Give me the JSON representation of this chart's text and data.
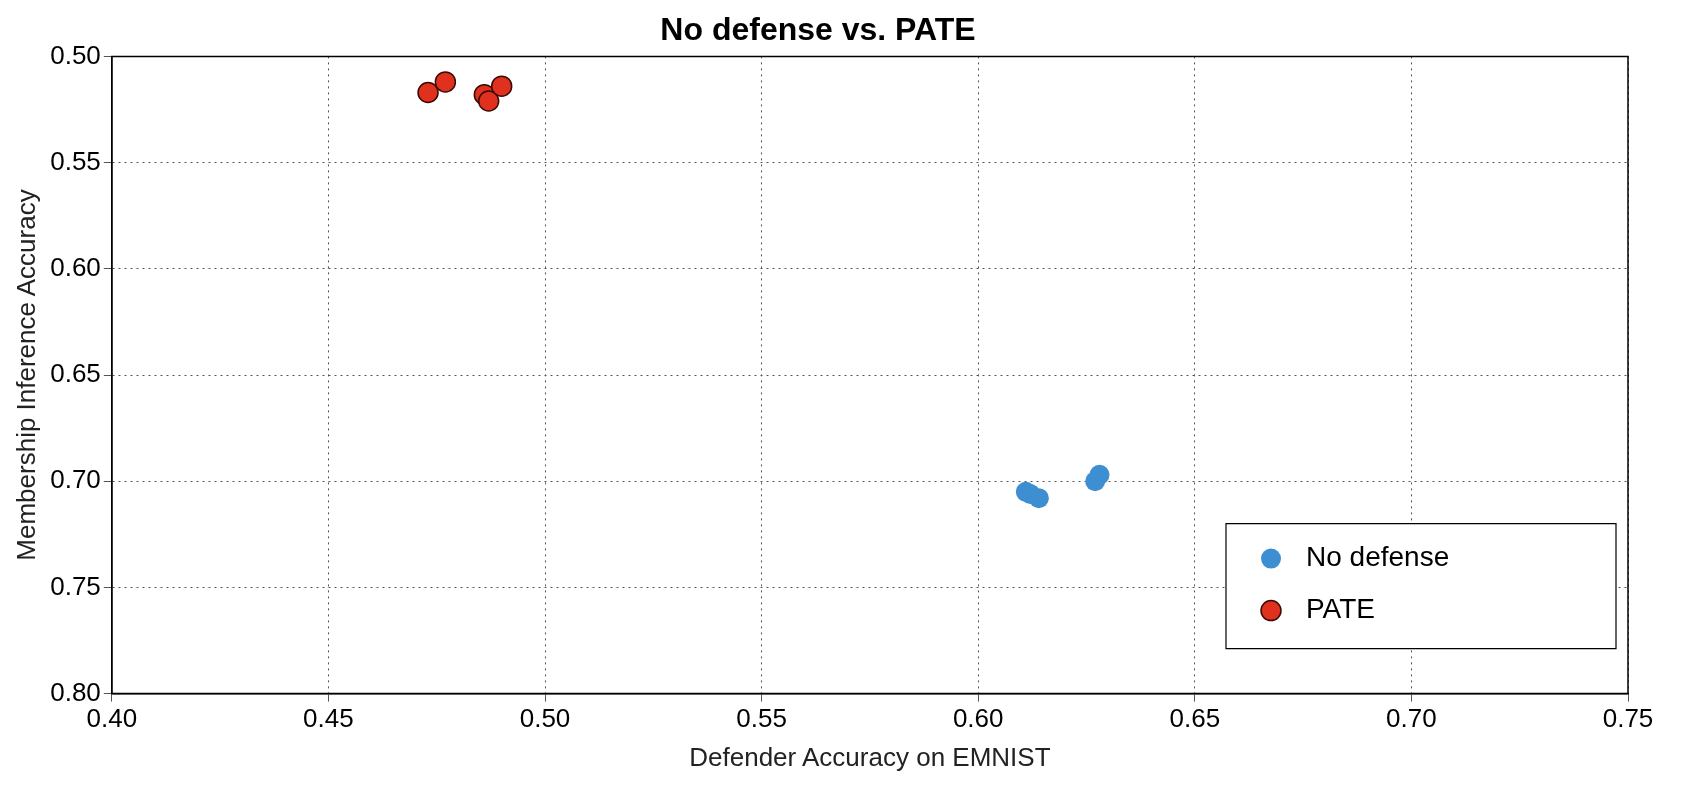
{
  "chart_data": {
    "type": "scatter",
    "title": "No defense vs. PATE",
    "xlabel": "Defender Accuracy on EMNIST",
    "ylabel": "Membership Inference Accuracy",
    "series": [
      {
        "name": "No defense",
        "color": "#3d8fd1",
        "x": [
          0.611,
          0.612,
          0.614,
          0.627,
          0.628
        ],
        "values": [
          0.705,
          0.706,
          0.708,
          0.7,
          0.697
        ]
      },
      {
        "name": "PATE",
        "color": "#e0301e",
        "x": [
          0.473,
          0.477,
          0.486,
          0.487,
          0.49
        ],
        "values": [
          0.517,
          0.512,
          0.518,
          0.521,
          0.514
        ]
      }
    ],
    "xlim": [
      0.4,
      0.75
    ],
    "xticks": [
      {
        "value": 0.4,
        "label": "0.40"
      },
      {
        "value": 0.45,
        "label": "0.45"
      },
      {
        "value": 0.5,
        "label": "0.50"
      },
      {
        "value": 0.55,
        "label": "0.55"
      },
      {
        "value": 0.6,
        "label": "0.60"
      },
      {
        "value": 0.65,
        "label": "0.65"
      },
      {
        "value": 0.7,
        "label": "0.70"
      },
      {
        "value": 0.75,
        "label": "0.75"
      }
    ],
    "ylim": [
      0.8,
      0.5
    ],
    "yticks": [
      {
        "value": 0.5,
        "label": "0.50"
      },
      {
        "value": 0.55,
        "label": "0.55"
      },
      {
        "value": 0.6,
        "label": "0.60"
      },
      {
        "value": 0.65,
        "label": "0.65"
      },
      {
        "value": 0.7,
        "label": "0.70"
      },
      {
        "value": 0.75,
        "label": "0.75"
      },
      {
        "value": 0.8,
        "label": "0.80"
      }
    ],
    "grid": true,
    "legend": "bottom right",
    "marker": "circle"
  }
}
